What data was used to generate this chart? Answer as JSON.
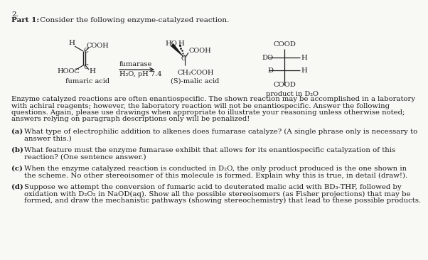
{
  "bg_color": "#f8f8f5",
  "text_color": "#1a1a1a",
  "title": "2.",
  "part_label": "Part 1:",
  "part_text": "Consider the following enzyme-catalyzed reaction.",
  "para1": [
    "Enzyme catalyzed reactions are often enantiospecific. The shown reaction may be accomplished in a laboratory",
    "with achiral reagents; however, the laboratory reaction will not be enantiospecific. Answer the following",
    "questions. Again, please use drawings when appropriate to illustrate your reasoning unless otherwise noted;",
    "answers relying on paragraph descriptions only will be penalized!"
  ],
  "qa_items": [
    {
      "label": "(a)",
      "lines": [
        "What type of electrophilic addition to alkenes does fumarase catalyze? (A single phrase only is necessary to",
        "answer this.)"
      ]
    },
    {
      "label": "(b)",
      "lines": [
        "What feature must the enzyme fumarase exhibit that allows for its enantiospecific catalyzation of this",
        "reaction? (One sentence answer.)"
      ]
    },
    {
      "label": "(c)",
      "lines": [
        "When the enzyme catalyzed reaction is conducted in D₂O, the only product produced is the one shown in",
        "the scheme. No other stereoisomer of this molecule is formed. Explain why this is true, in detail (draw!)."
      ]
    },
    {
      "label": "(d)",
      "lines": [
        "Suppose we attempt the conversion of fumaric acid to deuterated malic acid with BD₃-THF, followed by",
        "oxidation with D₂O₂ in NaOD(aq). Show all the possible stereoisomers (as Fisher projections) that may be",
        "formed, and draw the mechanistic pathways (showing stereochemistry) that lead to these possible products."
      ]
    }
  ]
}
